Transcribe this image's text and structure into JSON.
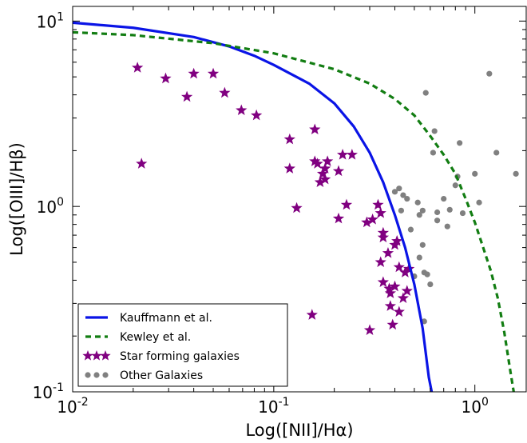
{
  "chart_data": {
    "type": "scatter",
    "title": "",
    "xlabel": "Log([NII]/Hα)",
    "ylabel": "Log([OIII]/Hβ)",
    "xscale": "log",
    "yscale": "log",
    "xlim": [
      0.01,
      1.8
    ],
    "ylim": [
      0.1,
      12
    ],
    "xticks": [
      {
        "value": 0.01,
        "base": "10",
        "exp": "-2"
      },
      {
        "value": 0.1,
        "base": "10",
        "exp": "-1"
      },
      {
        "value": 1,
        "base": "10",
        "exp": "0"
      }
    ],
    "yticks": [
      {
        "value": 0.1,
        "base": "10",
        "exp": "-1"
      },
      {
        "value": 1,
        "base": "10",
        "exp": "0"
      },
      {
        "value": 10,
        "base": "10",
        "exp": "1"
      }
    ],
    "grid": false,
    "legend_position": "bottom-left",
    "legend": [
      {
        "label": "Kauffmann et al.",
        "kind": "solid-line",
        "color": "#0a14e6"
      },
      {
        "label": "Kewley et al.",
        "kind": "dashed-line",
        "color": "#127d12"
      },
      {
        "label": "Star forming galaxies",
        "kind": "star",
        "color": "#800080"
      },
      {
        "label": "Other Galaxies",
        "kind": "dot",
        "color": "#808080"
      }
    ],
    "curves": [
      {
        "name": "Kauffmann et al.",
        "color": "#0a14e6",
        "dashed": false,
        "points": [
          [
            0.01,
            9.8
          ],
          [
            0.02,
            9.2
          ],
          [
            0.04,
            8.2
          ],
          [
            0.06,
            7.3
          ],
          [
            0.08,
            6.5
          ],
          [
            0.1,
            5.8
          ],
          [
            0.15,
            4.6
          ],
          [
            0.2,
            3.6
          ],
          [
            0.25,
            2.7
          ],
          [
            0.3,
            1.95
          ],
          [
            0.35,
            1.35
          ],
          [
            0.4,
            0.9
          ],
          [
            0.45,
            0.6
          ],
          [
            0.5,
            0.38
          ],
          [
            0.55,
            0.22
          ],
          [
            0.59,
            0.12
          ],
          [
            0.61,
            0.1
          ]
        ]
      },
      {
        "name": "Kewley et al.",
        "color": "#127d12",
        "dashed": true,
        "points": [
          [
            0.01,
            8.7
          ],
          [
            0.02,
            8.4
          ],
          [
            0.05,
            7.6
          ],
          [
            0.1,
            6.7
          ],
          [
            0.2,
            5.5
          ],
          [
            0.3,
            4.6
          ],
          [
            0.4,
            3.8
          ],
          [
            0.5,
            3.1
          ],
          [
            0.6,
            2.4
          ],
          [
            0.7,
            1.9
          ],
          [
            0.8,
            1.5
          ],
          [
            0.9,
            1.1
          ],
          [
            1.0,
            0.82
          ],
          [
            1.1,
            0.6
          ],
          [
            1.2,
            0.45
          ],
          [
            1.3,
            0.32
          ],
          [
            1.4,
            0.21
          ],
          [
            1.5,
            0.13
          ],
          [
            1.56,
            0.1
          ]
        ]
      }
    ],
    "series": [
      {
        "name": "Star forming galaxies",
        "marker": "star",
        "color": "#800080",
        "points": [
          [
            0.021,
            5.6
          ],
          [
            0.022,
            1.7
          ],
          [
            0.029,
            4.9
          ],
          [
            0.037,
            3.9
          ],
          [
            0.04,
            5.2
          ],
          [
            0.05,
            5.2
          ],
          [
            0.057,
            4.1
          ],
          [
            0.069,
            3.3
          ],
          [
            0.082,
            3.1
          ],
          [
            0.12,
            2.3
          ],
          [
            0.12,
            1.6
          ],
          [
            0.13,
            0.98
          ],
          [
            0.155,
            0.26
          ],
          [
            0.16,
            2.6
          ],
          [
            0.16,
            1.75
          ],
          [
            0.165,
            1.7
          ],
          [
            0.17,
            1.35
          ],
          [
            0.175,
            1.5
          ],
          [
            0.18,
            1.6
          ],
          [
            0.18,
            1.4
          ],
          [
            0.185,
            1.75
          ],
          [
            0.21,
            1.55
          ],
          [
            0.21,
            0.86
          ],
          [
            0.22,
            1.9
          ],
          [
            0.23,
            1.02
          ],
          [
            0.245,
            1.9
          ],
          [
            0.29,
            0.82
          ],
          [
            0.3,
            0.215
          ],
          [
            0.31,
            0.85
          ],
          [
            0.33,
            1.02
          ],
          [
            0.34,
            0.92
          ],
          [
            0.34,
            0.5
          ],
          [
            0.35,
            0.72
          ],
          [
            0.35,
            0.68
          ],
          [
            0.35,
            0.39
          ],
          [
            0.37,
            0.56
          ],
          [
            0.375,
            0.36
          ],
          [
            0.38,
            0.34
          ],
          [
            0.38,
            0.29
          ],
          [
            0.39,
            0.23
          ],
          [
            0.4,
            0.62
          ],
          [
            0.4,
            0.37
          ],
          [
            0.41,
            0.65
          ],
          [
            0.42,
            0.47
          ],
          [
            0.42,
            0.27
          ],
          [
            0.44,
            0.32
          ],
          [
            0.45,
            0.44
          ],
          [
            0.46,
            0.35
          ],
          [
            0.47,
            0.46
          ]
        ]
      },
      {
        "name": "Other Galaxies",
        "marker": "dot",
        "color": "#808080",
        "points": [
          [
            0.4,
            1.2
          ],
          [
            0.42,
            1.25
          ],
          [
            0.43,
            0.95
          ],
          [
            0.44,
            1.15
          ],
          [
            0.46,
            1.1
          ],
          [
            0.48,
            0.75
          ],
          [
            0.5,
            0.42
          ],
          [
            0.52,
            1.05
          ],
          [
            0.53,
            0.9
          ],
          [
            0.53,
            0.53
          ],
          [
            0.55,
            0.62
          ],
          [
            0.55,
            0.95
          ],
          [
            0.56,
            0.44
          ],
          [
            0.56,
            0.24
          ],
          [
            0.57,
            4.1
          ],
          [
            0.58,
            0.43
          ],
          [
            0.6,
            0.38
          ],
          [
            0.62,
            1.95
          ],
          [
            0.63,
            2.55
          ],
          [
            0.65,
            0.93
          ],
          [
            0.65,
            0.84
          ],
          [
            0.7,
            1.1
          ],
          [
            0.73,
            0.78
          ],
          [
            0.75,
            0.96
          ],
          [
            0.8,
            1.3
          ],
          [
            0.82,
            1.45
          ],
          [
            0.84,
            2.2
          ],
          [
            0.87,
            0.92
          ],
          [
            1.0,
            1.5
          ],
          [
            1.05,
            1.05
          ],
          [
            1.18,
            5.2
          ],
          [
            1.28,
            1.95
          ],
          [
            1.6,
            1.5
          ]
        ]
      }
    ]
  }
}
